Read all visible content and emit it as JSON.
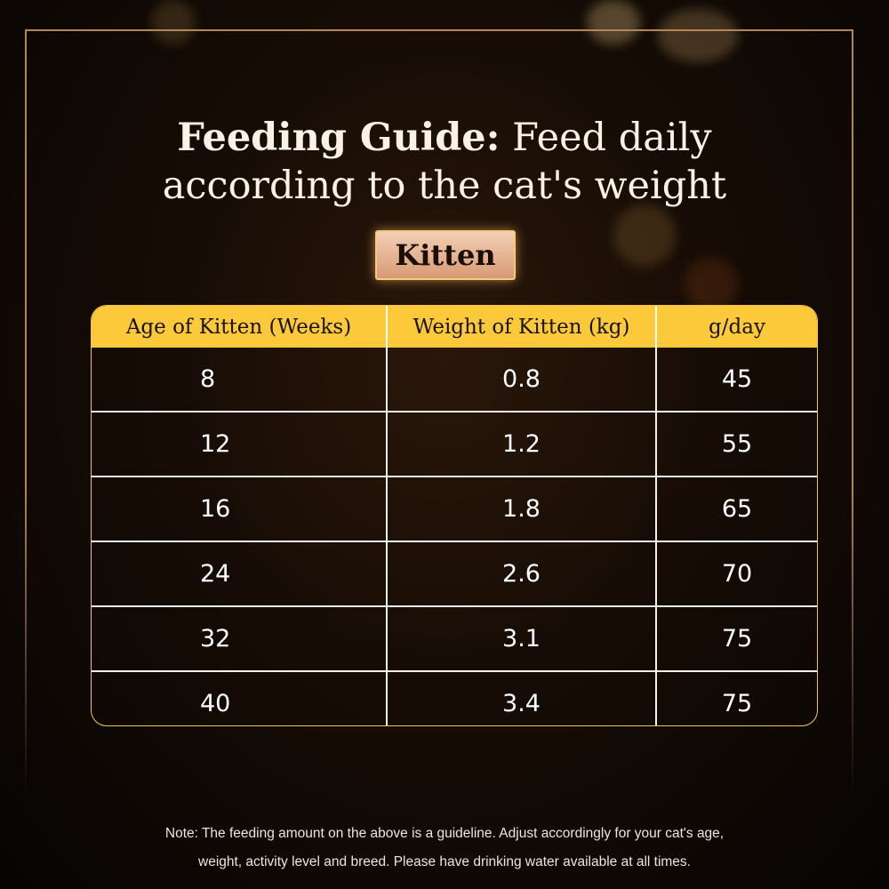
{
  "title": {
    "bold": "Feeding Guide:",
    "rest_line1": " Feed daily",
    "line2": "according to the cat's weight"
  },
  "badge": "Kitten",
  "table": {
    "headers": [
      "Age of Kitten (Weeks)",
      "Weight of Kitten (kg)",
      "g/day"
    ],
    "rows": [
      [
        "8",
        "0.8",
        "45"
      ],
      [
        "12",
        "1.2",
        "55"
      ],
      [
        "16",
        "1.8",
        "65"
      ],
      [
        "24",
        "2.6",
        "70"
      ],
      [
        "32",
        "3.1",
        "75"
      ],
      [
        "40",
        "3.4",
        "75"
      ]
    ]
  },
  "note": {
    "line1": "Note: The feeding amount on the above is a guideline. Adjust accordingly for your cat's age,",
    "line2": "weight, activity level and breed. Please have drinking water available at all times."
  },
  "colors": {
    "header_bg": "#fbc93a",
    "badge_bg": "#e6b393",
    "frame": "#b0865a"
  }
}
